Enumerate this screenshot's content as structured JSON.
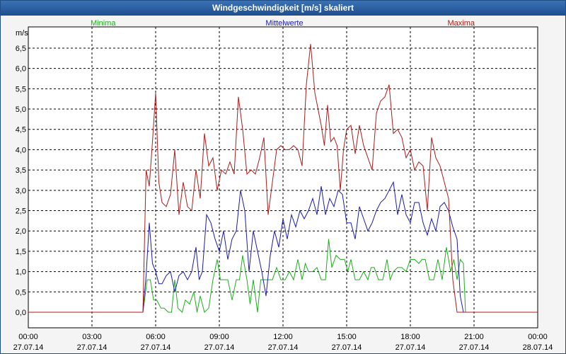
{
  "window": {
    "title": "Windgeschwindigkeit [m/s] skaliert"
  },
  "chart_data": {
    "type": "line",
    "title": "Windgeschwindigkeit [m/s] skaliert",
    "ylabel": "m/s",
    "ylim": [
      0,
      6.9
    ],
    "yticks": [
      0,
      0.5,
      1,
      1.5,
      2,
      2.5,
      3,
      3.5,
      4,
      4.5,
      5,
      5.5,
      6,
      6.5
    ],
    "ytick_labels": [
      "0,0",
      "0,5",
      "1,0",
      "1,5",
      "2,0",
      "2,5",
      "3,0",
      "3,5",
      "4,0",
      "4,5",
      "5,0",
      "5,5",
      "6,0",
      "6,5"
    ],
    "xlim": [
      0,
      24
    ],
    "xticks": [
      {
        "h": 0,
        "time": "00:00",
        "date": "27.07.14"
      },
      {
        "h": 3,
        "time": "03:00",
        "date": "27.07.14"
      },
      {
        "h": 6,
        "time": "06:00",
        "date": "27.07.14"
      },
      {
        "h": 9,
        "time": "09:00",
        "date": "27.07.14"
      },
      {
        "h": 12,
        "time": "12:00",
        "date": "27.07.14"
      },
      {
        "h": 15,
        "time": "15:00",
        "date": "27.07.14"
      },
      {
        "h": 18,
        "time": "18:00",
        "date": "27.07.14"
      },
      {
        "h": 21,
        "time": "21:00",
        "date": "27.07.14"
      },
      {
        "h": 24,
        "time": "00:00",
        "date": "28.07.14"
      }
    ],
    "grid": true,
    "series": [
      {
        "name": "Minima",
        "color": "#19b019",
        "x": [
          0,
          5.4,
          5.6,
          5.75,
          5.9,
          6.05,
          6.25,
          6.4,
          6.6,
          6.75,
          6.9,
          7.05,
          7.25,
          7.4,
          7.6,
          7.8,
          7.95,
          8.1,
          8.3,
          8.5,
          8.7,
          8.9,
          9.05,
          9.2,
          9.4,
          9.6,
          9.8,
          9.95,
          10.1,
          10.3,
          10.45,
          10.6,
          10.8,
          10.95,
          11.1,
          11.3,
          11.5,
          11.7,
          11.9,
          12.1,
          12.3,
          12.5,
          12.7,
          12.9,
          13.05,
          13.2,
          13.4,
          13.6,
          13.8,
          14.0,
          14.15,
          14.3,
          14.5,
          14.7,
          14.9,
          15.05,
          15.2,
          15.4,
          15.6,
          15.8,
          16.0,
          16.15,
          16.3,
          16.5,
          16.7,
          16.9,
          17.05,
          17.2,
          17.4,
          17.6,
          17.8,
          18.0,
          18.2,
          18.4,
          18.55,
          18.7,
          18.9,
          19.1,
          19.3,
          19.5,
          19.7,
          19.9,
          20.05,
          20.2,
          20.35,
          20.5,
          20.6,
          24
        ],
        "values": [
          0,
          0,
          0.8,
          0.8,
          0.3,
          0.3,
          0.1,
          0.1,
          0,
          0,
          0.8,
          0.1,
          0,
          0.3,
          0.2,
          0.5,
          0,
          0.4,
          0,
          0.1,
          0.8,
          1.3,
          0.8,
          0.8,
          0.8,
          0.3,
          0.8,
          0.8,
          1.4,
          0.8,
          0.2,
          0.8,
          0,
          0.8,
          0.8,
          0.8,
          0.8,
          1.1,
          0.8,
          0.8,
          1.0,
          0.8,
          1.3,
          0.8,
          1.2,
          1.0,
          1.0,
          1.1,
          0.8,
          0.8,
          1.8,
          1.1,
          1.4,
          1.3,
          1.3,
          1.0,
          1.3,
          0.8,
          0.8,
          1.0,
          0.8,
          1.1,
          1.1,
          0.8,
          0.8,
          1.3,
          0.8,
          1.0,
          1.1,
          1.1,
          1.0,
          1.3,
          1.3,
          1.2,
          1.3,
          1.3,
          0.8,
          0.8,
          1.3,
          0.8,
          1.6,
          1.0,
          1.3,
          0.8,
          1.3,
          1.2,
          0,
          0
        ]
      },
      {
        "name": "Mittelwerte",
        "color": "#1a1ab0",
        "x": [
          0,
          5.4,
          5.55,
          5.7,
          5.85,
          6.0,
          6.15,
          6.3,
          6.5,
          6.7,
          6.9,
          7.1,
          7.3,
          7.5,
          7.7,
          7.9,
          8.05,
          8.2,
          8.4,
          8.6,
          8.8,
          9.0,
          9.2,
          9.4,
          9.6,
          9.8,
          10.0,
          10.2,
          10.4,
          10.6,
          10.8,
          11.0,
          11.2,
          11.4,
          11.6,
          11.8,
          12.0,
          12.2,
          12.4,
          12.6,
          12.8,
          13.0,
          13.2,
          13.4,
          13.6,
          13.8,
          14.0,
          14.2,
          14.4,
          14.6,
          14.8,
          15.0,
          15.2,
          15.4,
          15.6,
          15.8,
          16.0,
          16.2,
          16.4,
          16.6,
          16.8,
          17.0,
          17.2,
          17.4,
          17.6,
          17.8,
          18.0,
          18.2,
          18.4,
          18.6,
          18.8,
          19.0,
          19.2,
          19.4,
          19.6,
          19.8,
          20.0,
          20.2,
          20.35,
          20.5,
          20.65,
          24
        ],
        "values": [
          0,
          0,
          0.9,
          2.2,
          1.2,
          1.0,
          0.7,
          0.7,
          0.9,
          1.0,
          0.5,
          0.9,
          1.0,
          0.8,
          1.0,
          1.6,
          0.8,
          1.0,
          2.4,
          2.2,
          1.8,
          1.5,
          2.0,
          1.3,
          1.8,
          2.0,
          3.0,
          2.5,
          1.0,
          2.0,
          1.5,
          1.0,
          0.4,
          1.4,
          2.0,
          1.6,
          2.3,
          1.8,
          2.4,
          2.1,
          2.5,
          2.3,
          2.5,
          2.8,
          2.4,
          3.1,
          2.4,
          2.8,
          2.6,
          3.0,
          2.9,
          2.2,
          2.2,
          1.8,
          2.6,
          2.3,
          2.0,
          2.2,
          2.5,
          2.7,
          2.8,
          3.0,
          3.2,
          2.4,
          2.9,
          2.4,
          2.2,
          2.7,
          2.7,
          2.2,
          1.9,
          2.3,
          2.0,
          2.6,
          2.7,
          2.5,
          2.1,
          1.8,
          0.4,
          0,
          0,
          0
        ]
      },
      {
        "name": "Maxima",
        "color": "#b01a1a",
        "x": [
          0,
          5.4,
          5.55,
          5.7,
          5.85,
          6.0,
          6.15,
          6.3,
          6.5,
          6.7,
          6.9,
          7.1,
          7.3,
          7.5,
          7.7,
          7.9,
          8.1,
          8.3,
          8.5,
          8.7,
          8.9,
          9.1,
          9.3,
          9.5,
          9.7,
          9.9,
          10.1,
          10.3,
          10.5,
          10.7,
          10.9,
          11.1,
          11.3,
          11.5,
          11.7,
          11.9,
          12.1,
          12.3,
          12.5,
          12.7,
          12.9,
          13.1,
          13.3,
          13.5,
          13.65,
          13.8,
          13.95,
          14.1,
          14.25,
          14.4,
          14.55,
          14.7,
          14.85,
          15.0,
          15.2,
          15.4,
          15.6,
          15.8,
          16.0,
          16.2,
          16.4,
          16.6,
          16.8,
          17.0,
          17.2,
          17.4,
          17.6,
          17.8,
          18.0,
          18.2,
          18.4,
          18.6,
          18.8,
          19.0,
          19.2,
          19.4,
          19.6,
          19.8,
          20.0,
          20.2,
          20.35,
          20.5,
          20.65,
          24
        ],
        "values": [
          0,
          0,
          3.5,
          3.1,
          4.2,
          5.4,
          3.2,
          2.7,
          2.6,
          2.9,
          4.0,
          2.4,
          3.2,
          2.6,
          2.5,
          3.5,
          2.8,
          4.4,
          3.6,
          3.8,
          3.0,
          3.5,
          3.4,
          3.7,
          3.4,
          5.3,
          4.5,
          3.4,
          3.5,
          3.4,
          3.8,
          4.3,
          2.4,
          3.2,
          4.0,
          4.1,
          4.0,
          4.0,
          4.1,
          4.0,
          3.6,
          5.6,
          6.6,
          5.4,
          5.0,
          4.6,
          4.1,
          5.1,
          4.2,
          4.3,
          4.1,
          3.0,
          4.0,
          4.5,
          4.6,
          3.9,
          4.6,
          4.1,
          3.8,
          3.5,
          4.9,
          5.2,
          5.3,
          5.6,
          4.4,
          4.5,
          4.3,
          3.8,
          4.0,
          3.5,
          3.7,
          3.6,
          2.5,
          4.3,
          3.8,
          3.6,
          3.2,
          2.8,
          0.8,
          0,
          0,
          0,
          0,
          0
        ]
      }
    ]
  }
}
